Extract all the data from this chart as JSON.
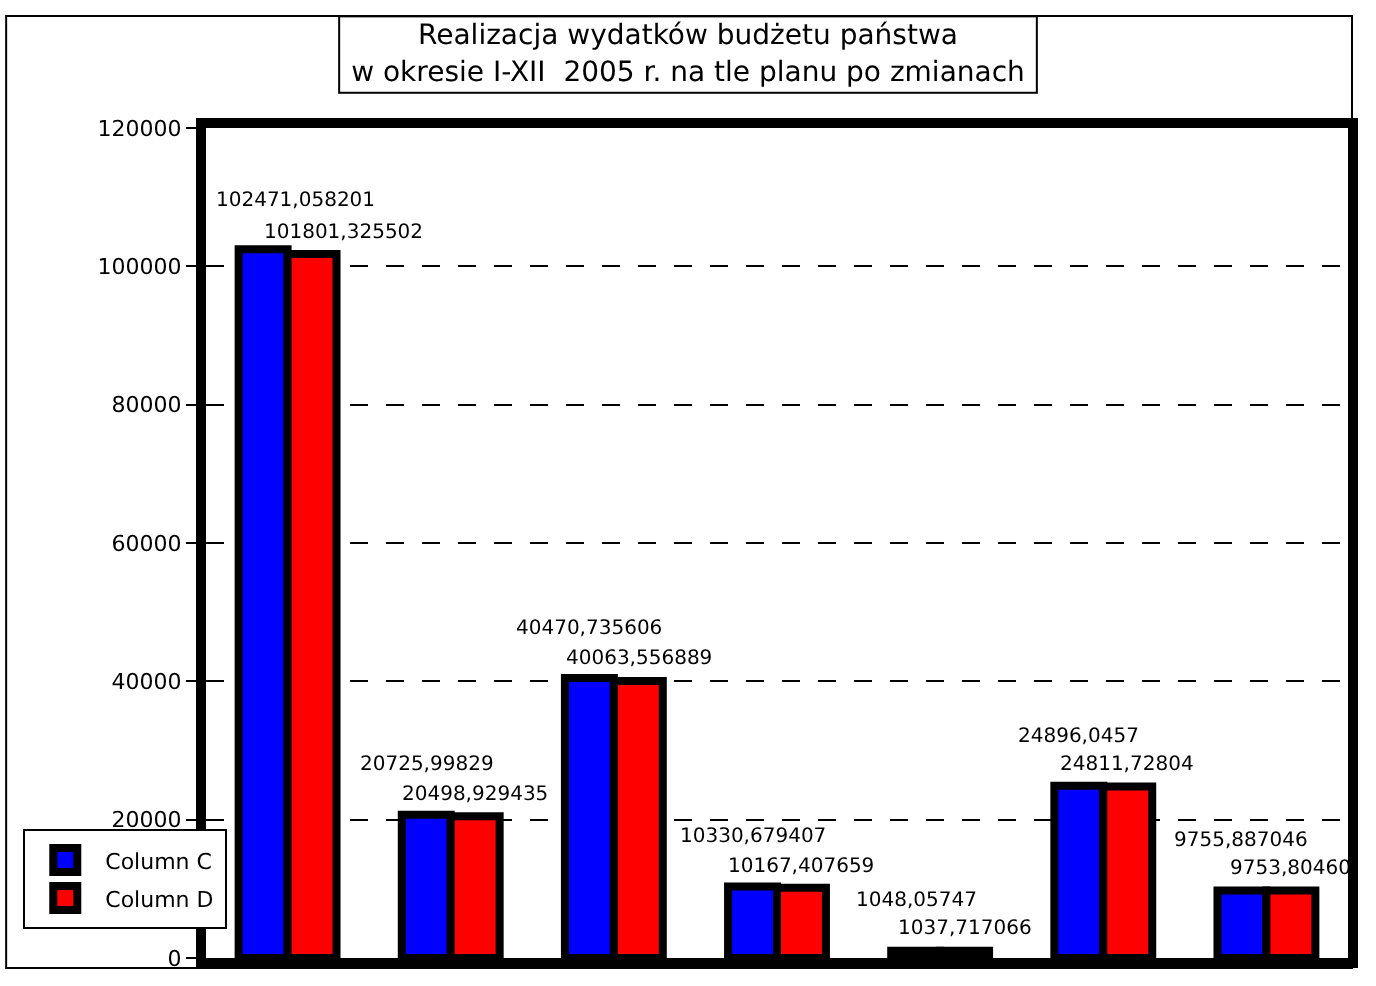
{
  "chart_data": {
    "type": "bar",
    "title": "Realizacja wydatków budżetu państwa\nw okresie I-XII  2005 r. na tle planu po zmianach",
    "categories": [
      null,
      null,
      null,
      null,
      null,
      null,
      null
    ],
    "series": [
      {
        "name": "Column C",
        "color": "#0000ff",
        "values": [
          102471,
          20726,
          40471,
          10331,
          1048,
          24896,
          9756
        ],
        "value_labels": [
          "102471,058201",
          "20725,99829",
          "40470,735606",
          "10330,679407",
          "1048,05747",
          "24896,0457",
          "9755,887046"
        ]
      },
      {
        "name": "Column D",
        "color": "#ff0000",
        "values": [
          101801,
          20499,
          40064,
          10167,
          1037,
          24812,
          9754
        ],
        "value_labels": [
          "101801,325502",
          "20498,929435",
          "40063,556889",
          "10167,407659",
          "1037,717066",
          "24811,72804",
          "9753,80460"
        ]
      }
    ],
    "ylim": [
      0,
      120000
    ],
    "yticks": [
      0,
      20000,
      40000,
      60000,
      80000,
      100000,
      120000
    ],
    "grid": "y",
    "legend": "bottom left"
  }
}
